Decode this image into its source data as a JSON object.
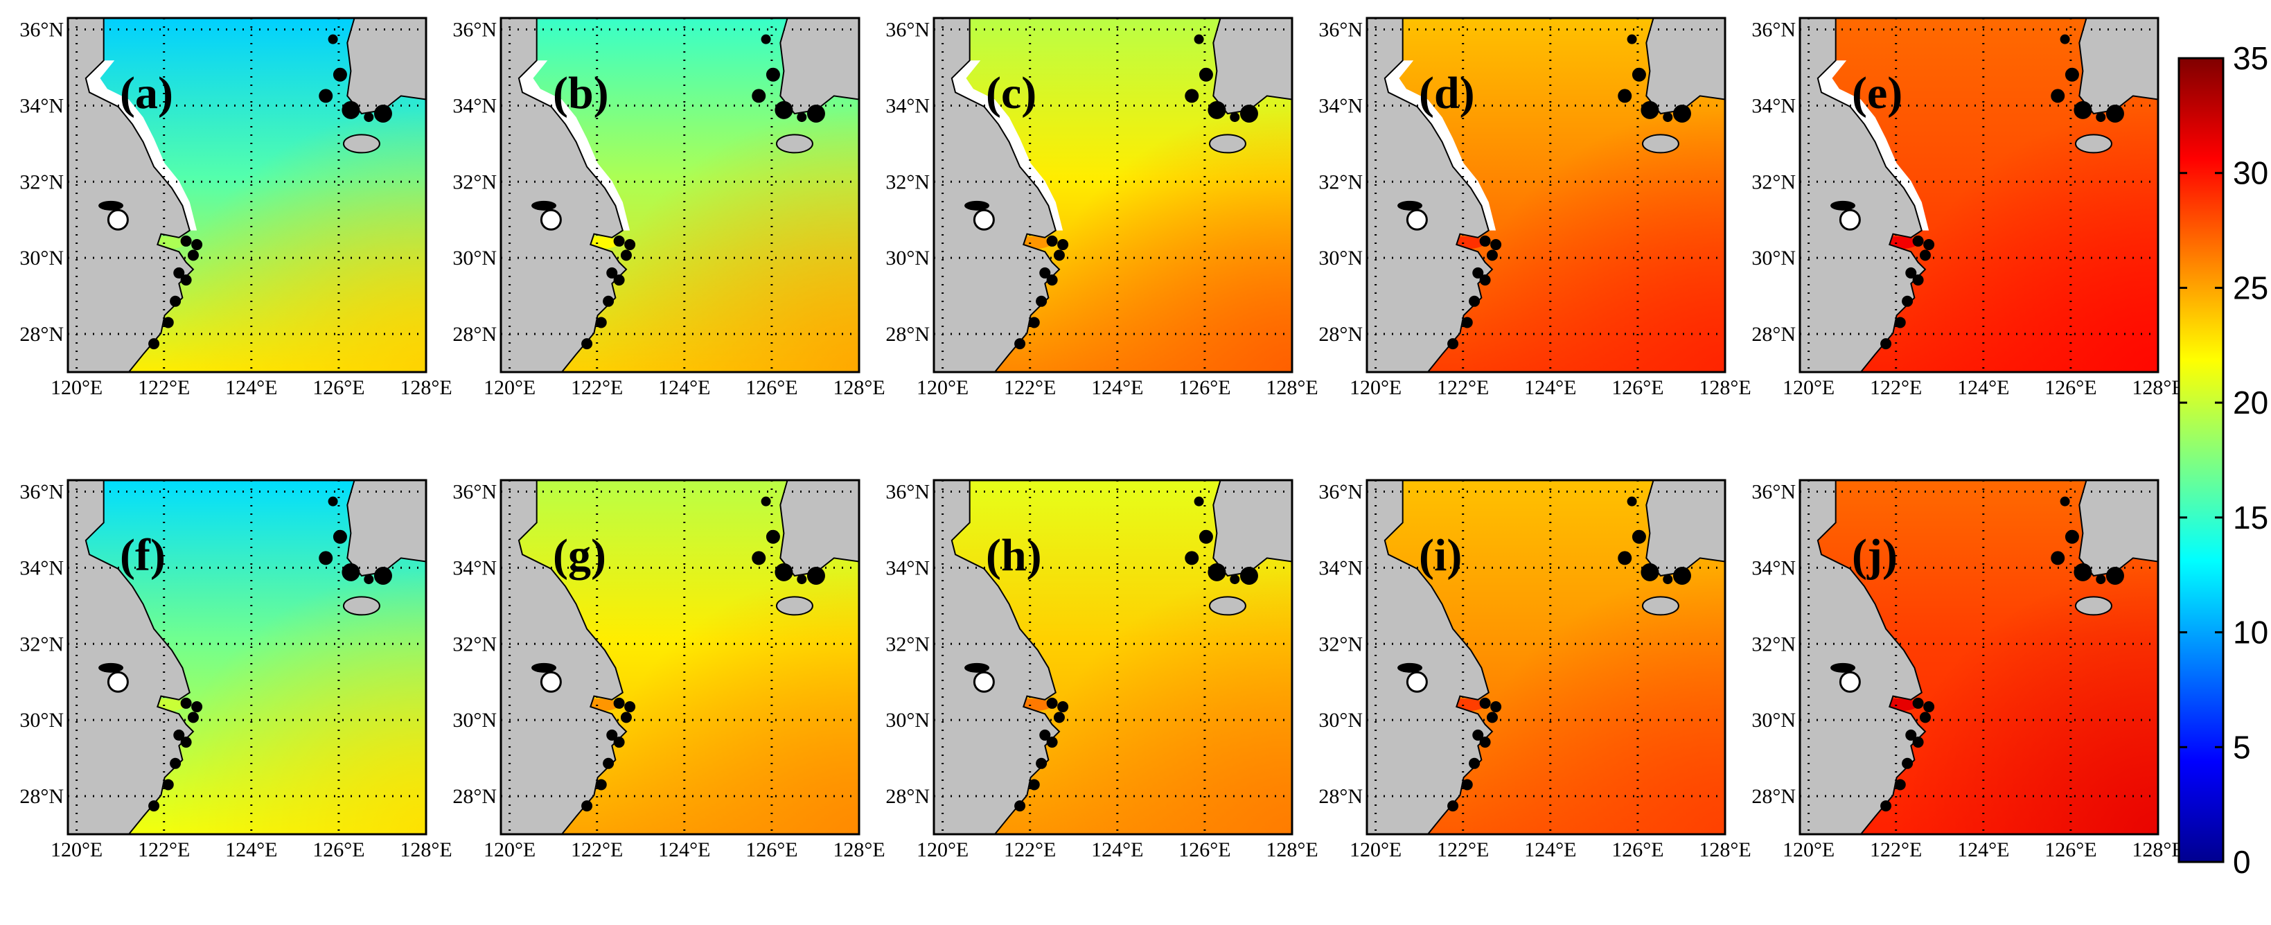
{
  "colors": {
    "land": "#c0c0c0",
    "coast": "#000000",
    "colormap": [
      "#00008f",
      "#0000ff",
      "#0080ff",
      "#00ffff",
      "#80ff80",
      "#ffff00",
      "#ff8000",
      "#ff0000",
      "#800000"
    ]
  },
  "map": {
    "lon_range": [
      119.8,
      128.0
    ],
    "lat_range": [
      27.0,
      36.3
    ],
    "x_ticks": [
      "120°E",
      "122°E",
      "124°E",
      "126°E",
      "128°E"
    ],
    "y_ticks": [
      "28°N",
      "30°N",
      "32°N",
      "34°N",
      "36°N"
    ],
    "grid": "dotted"
  },
  "panels": [
    {
      "label": "(a)",
      "north": 11.5,
      "mid": 16,
      "south": 22.5,
      "southeast": 23.5,
      "coastal_feature": "white mudflat strip"
    },
    {
      "label": "(b)",
      "north": 15,
      "mid": 19,
      "south": 23.5,
      "southeast": 25,
      "coastal_feature": "white mudflat strip"
    },
    {
      "label": "(c)",
      "north": 19.5,
      "mid": 22.5,
      "south": 26,
      "southeast": 27.5,
      "coastal_feature": "white mudflat strip"
    },
    {
      "label": "(d)",
      "north": 24,
      "mid": 26,
      "south": 28.5,
      "southeast": 29.5,
      "coastal_feature": "white mudflat strip"
    },
    {
      "label": "(e)",
      "north": 27,
      "mid": 28,
      "south": 29.5,
      "southeast": 30.5,
      "coastal_feature": "white mudflat strip"
    },
    {
      "label": "(f)",
      "north": 12,
      "mid": 17,
      "south": 21.5,
      "southeast": 23,
      "coastal_feature": "none"
    },
    {
      "label": "(g)",
      "north": 19.5,
      "mid": 22.5,
      "south": 25,
      "southeast": 26,
      "coastal_feature": "none"
    },
    {
      "label": "(h)",
      "north": 21,
      "mid": 23.5,
      "south": 25.5,
      "southeast": 26.5,
      "coastal_feature": "none"
    },
    {
      "label": "(i)",
      "north": 24,
      "mid": 25.5,
      "south": 27.5,
      "southeast": 28.5,
      "coastal_feature": "none"
    },
    {
      "label": "(j)",
      "north": 27,
      "mid": 28.5,
      "south": 29.5,
      "southeast": 31.5,
      "coastal_feature": "none"
    }
  ],
  "colorbar": {
    "min": 0,
    "max": 35,
    "ticks": [
      "0",
      "5",
      "10",
      "15",
      "20",
      "25",
      "30",
      "35"
    ]
  }
}
